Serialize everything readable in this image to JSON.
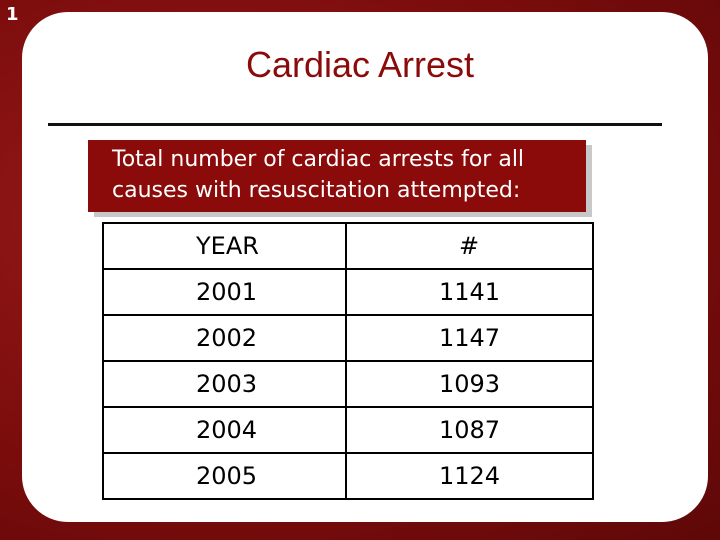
{
  "slide_number": "1",
  "title": "Cardiac Arrest",
  "callout": "Total number of cardiac arrests for all causes with resuscitation attempted:",
  "table": {
    "header": [
      "YEAR",
      "#"
    ],
    "rows": [
      [
        "2001",
        1141
      ],
      [
        "2002",
        1147
      ],
      [
        "2003",
        1093
      ],
      [
        "2004",
        1087
      ],
      [
        "2005",
        1124
      ]
    ]
  }
}
